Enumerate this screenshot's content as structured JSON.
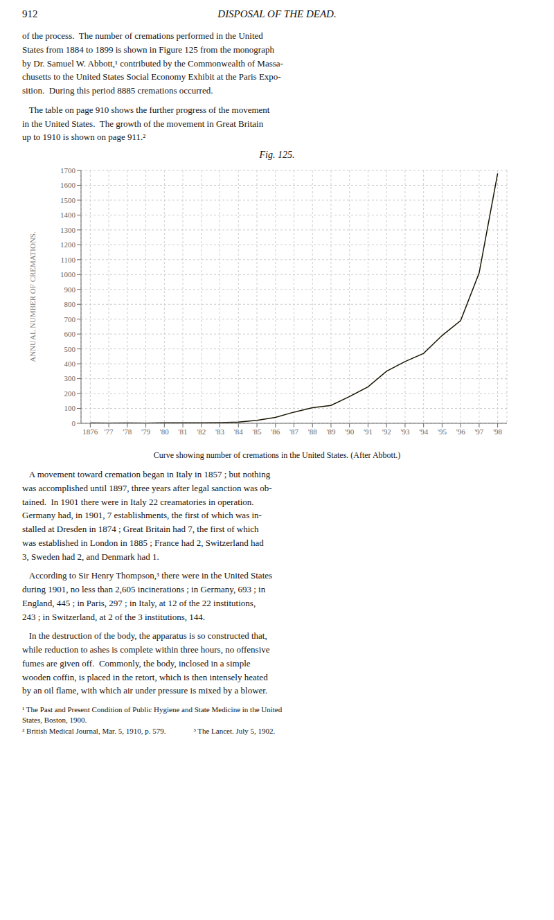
{
  "chart_data": {
    "type": "line",
    "title": "Fig. 125.",
    "ylabel": "ANNUAL NUMBER OF CREMATIONS.",
    "x": [
      1876,
      1877,
      1878,
      1879,
      1880,
      1881,
      1882,
      1883,
      1884,
      1885,
      1886,
      1887,
      1888,
      1889,
      1890,
      1891,
      1892,
      1893,
      1894,
      1895,
      1896,
      1897,
      1898
    ],
    "values": [
      2,
      1,
      2,
      1,
      3,
      4,
      4,
      5,
      8,
      20,
      40,
      75,
      105,
      120,
      180,
      245,
      350,
      415,
      470,
      590,
      690,
      1010,
      1680
    ],
    "color": "#1a1500",
    "xlim": [
      1875.5,
      1898.5
    ],
    "xticks": [
      1876,
      {
        "value": 1877,
        "label": "'77"
      },
      {
        "value": 1878,
        "label": "'78"
      },
      {
        "value": 1879,
        "label": "'79"
      },
      {
        "value": 1880,
        "label": "'80"
      },
      {
        "value": 1881,
        "label": "'81"
      },
      {
        "value": 1882,
        "label": "'82"
      },
      {
        "value": 1883,
        "label": "'83"
      },
      {
        "value": 1884,
        "label": "'84"
      },
      {
        "value": 1885,
        "label": "'85"
      },
      {
        "value": 1886,
        "label": "'86"
      },
      {
        "value": 1887,
        "label": "'87"
      },
      {
        "value": 1888,
        "label": "'88"
      },
      {
        "value": 1889,
        "label": "'89"
      },
      {
        "value": 1890,
        "label": "'90"
      },
      {
        "value": 1891,
        "label": "'91"
      },
      {
        "value": 1892,
        "label": "'92"
      },
      {
        "value": 1893,
        "label": "'93"
      },
      {
        "value": 1894,
        "label": "'94"
      },
      {
        "value": 1895,
        "label": "'95"
      },
      {
        "value": 1896,
        "label": "'96"
      },
      {
        "value": 1897,
        "label": "'97"
      },
      {
        "value": 1898,
        "label": "'98"
      }
    ],
    "ylim": [
      0,
      1700
    ],
    "yticks": [
      0,
      100,
      200,
      300,
      400,
      500,
      600,
      700,
      800,
      900,
      1000,
      1100,
      1200,
      1300,
      1400,
      1500,
      1600,
      1700
    ],
    "grid": true,
    "annotations": [
      "912",
      "DISPOSAL OF THE DEAD.",
      "of the process.  The number of cremations performed in the United\nStates from 1884 to 1899 is shown in Figure 125 from the monograph\nby Dr. Samuel W. Abbott,¹ contributed by the Commonwealth of Massa-\nchusetts to the United States Social Economy Exhibit at the Paris Expo-\nsition.  During this period 8885 cremations occurred.",
      "   The table on page 910 shows the further progress of the movement\nin the United States.  The growth of the movement in Great Britain\nup to 1910 is shown on page 911.²",
      "Curve showing number of cremations in the United States.  (After Abbott.)",
      "   A movement toward cremation began in Italy in 1857 ; but nothing\nwas accomplished until 1897, three years after legal sanction was ob-\ntained.  In 1901 there were in Italy 22 creamatories in operation.\nGermany had, in 1901, 7 establishments, the first of which was in-\nstalled at Dresden in 1874 ; Great Britain had 7, the first of which\nwas established in London in 1885 ; France had 2, Switzerland had\n3, Sweden had 2, and Denmark had 1.",
      "   According to Sir Henry Thompson,³ there were in the United States\nduring 1901, no less than 2,605 incinerations ; in Germany, 693 ; in\nEngland, 445 ; in Paris, 297 ; in Italy, at 12 of the 22 institutions,\n243 ; in Switzerland, at 2 of the 3 institutions, 144.",
      "   In the destruction of the body, the apparatus is so constructed that,\nwhile reduction to ashes is complete within three hours, no offensive\nfumes are given off.  Commonly, the body, inclosed in a simple\nwooden coffin, is placed in the retort, which is then intensely heated\nby an oil flame, with which air under pressure is mixed by a blower.",
      "¹ The Past and Present Condition of Public Hygiene and State Medicine in the United",
      "States, Boston, 1900.",
      "² British Medical Journal, Mar. 5, 1910, p. 579.",
      "³ The Lancet. July 5, 1902."
    ]
  }
}
